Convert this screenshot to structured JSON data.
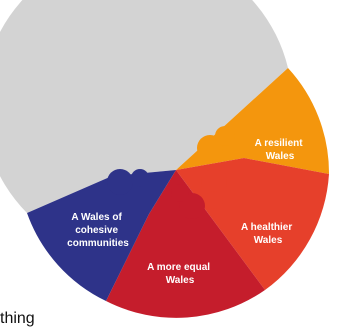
{
  "diagram": {
    "colors": {
      "top": "#d3d3d3",
      "resilient": "#f4960d",
      "healthier": "#e6402b",
      "equal": "#c51d2c",
      "cohesive": "#2e3389",
      "background": "#ffffff"
    },
    "segments": [
      {
        "id": "resilient",
        "label_lines": [
          "A resilient",
          "Wales"
        ]
      },
      {
        "id": "healthier",
        "label_lines": [
          "A healthier",
          "Wales"
        ]
      },
      {
        "id": "equal",
        "label_lines": [
          "A more equal",
          "Wales"
        ]
      },
      {
        "id": "cohesive",
        "label_lines": [
          "A Wales of",
          "cohesive",
          "communities"
        ]
      }
    ]
  },
  "cutoff_text": "thing"
}
